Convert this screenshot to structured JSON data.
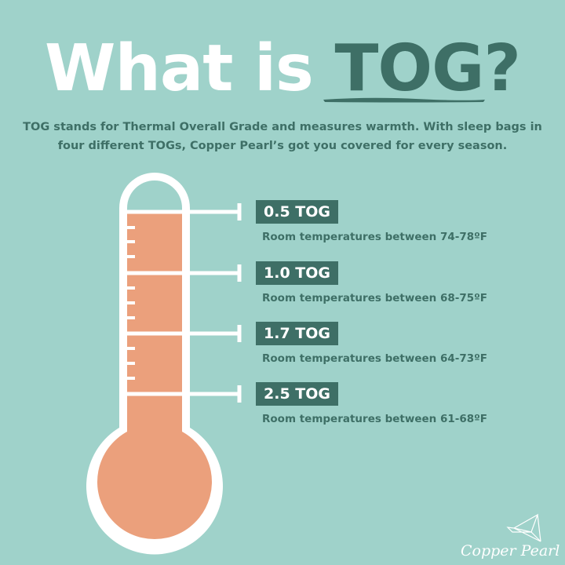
{
  "title": {
    "part1": "What is",
    "part2": "TOG?"
  },
  "intro": "TOG stands for Thermal Overall Grade and measures warmth. With sleep bags in four different TOGs, Copper Pearl’s got you covered for every season.",
  "levels": [
    {
      "tog": "0.5 TOG",
      "range": "Room temperatures between 74-78ºF"
    },
    {
      "tog": "1.0 TOG",
      "range": "Room temperatures between 68-75ºF"
    },
    {
      "tog": "1.7 TOG",
      "range": "Room temperatures between 64-73ºF"
    },
    {
      "tog": "2.5 TOG",
      "range": "Room temperatures between 61-68ºF"
    }
  ],
  "logo": {
    "text": "Copper Pearl.",
    "icon": "origami-bird-icon"
  },
  "colors": {
    "background": "#9fd2ca",
    "accent": "#3e6f66",
    "fill": "#eba07c",
    "white": "#ffffff"
  }
}
